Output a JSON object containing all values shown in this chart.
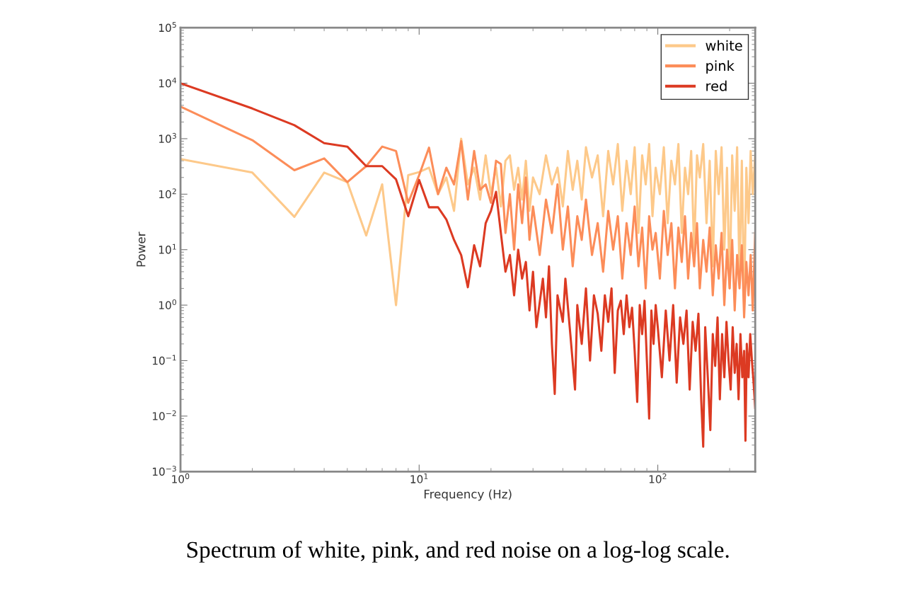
{
  "chart_data": {
    "type": "line",
    "xlabel": "Frequency (Hz)",
    "ylabel": "Power",
    "log": "xy",
    "grid": false,
    "legend": "top right",
    "marker": "none",
    "line_style": "solid",
    "xlim": [
      1,
      256
    ],
    "ylim": [
      0.001,
      100000
    ],
    "xticks": [
      {
        "value": 1,
        "label": "10$^{0}$"
      },
      {
        "value": 10,
        "label": "10$^{1}$"
      },
      {
        "value": 100,
        "label": "10$^{2}$"
      }
    ],
    "yticks": [
      {
        "value": 0.001,
        "label": "10$^{−3}$"
      },
      {
        "value": 0.01,
        "label": "10$^{−2}$"
      },
      {
        "value": 0.1,
        "label": "10$^{−1}$"
      },
      {
        "value": 1,
        "label": "10$^{0}$"
      },
      {
        "value": 10,
        "label": "10$^{1}$"
      },
      {
        "value": 100,
        "label": "10$^{2}$"
      },
      {
        "value": 1000,
        "label": "10$^{3}$"
      },
      {
        "value": 10000,
        "label": "10$^{4}$"
      },
      {
        "value": 100000,
        "label": "10$^{5}$"
      }
    ],
    "annotations": [
      "Spectrum of white, pink, and red noise on a log-log scale."
    ],
    "series": [
      {
        "name": "white",
        "color": "#fdc98a",
        "x": [
          1,
          2,
          3,
          4,
          5,
          6,
          7,
          8,
          9,
          10,
          11,
          12,
          13,
          14,
          15,
          16,
          17,
          18,
          19,
          20,
          21,
          22,
          23,
          24,
          25,
          26,
          27,
          28,
          29,
          30,
          32,
          34,
          36,
          38,
          40,
          42,
          44,
          46,
          48,
          50,
          53,
          56,
          59,
          62,
          65,
          68,
          71,
          74,
          77,
          80,
          83,
          86,
          89,
          92,
          95,
          98,
          102,
          106,
          110,
          114,
          118,
          122,
          126,
          130,
          134,
          138,
          142,
          146,
          150,
          155,
          160,
          165,
          170,
          175,
          180,
          185,
          190,
          195,
          200,
          205,
          210,
          215,
          220,
          225,
          230,
          235,
          240,
          245,
          250,
          256
        ],
        "values": [
          430,
          245,
          39,
          245,
          165,
          18,
          150,
          1,
          220,
          250,
          300,
          100,
          200,
          50,
          1000,
          150,
          300,
          80,
          500,
          100,
          300,
          60,
          400,
          500,
          120,
          300,
          80,
          400,
          50,
          200,
          100,
          500,
          150,
          300,
          60,
          600,
          120,
          400,
          80,
          700,
          200,
          500,
          40,
          600,
          150,
          800,
          50,
          400,
          100,
          700,
          20,
          500,
          150,
          800,
          40,
          300,
          100,
          700,
          30,
          400,
          150,
          800,
          20,
          300,
          100,
          600,
          10,
          500,
          200,
          800,
          30,
          400,
          5,
          600,
          100,
          700,
          10,
          300,
          2,
          500,
          50,
          700,
          3,
          400,
          1,
          300,
          30,
          600,
          100,
          500
        ]
      },
      {
        "name": "pink",
        "color": "#fc8d59",
        "x": [
          1,
          2,
          3,
          4,
          5,
          6,
          7,
          8,
          9,
          10,
          11,
          12,
          13,
          14,
          15,
          16,
          17,
          18,
          19,
          20,
          21,
          22,
          23,
          24,
          25,
          26,
          27,
          28,
          29,
          30,
          32,
          34,
          36,
          38,
          40,
          42,
          44,
          46,
          48,
          50,
          53,
          56,
          59,
          62,
          65,
          68,
          71,
          74,
          77,
          80,
          83,
          86,
          89,
          92,
          95,
          98,
          102,
          106,
          110,
          114,
          118,
          122,
          126,
          130,
          134,
          138,
          142,
          146,
          150,
          155,
          160,
          165,
          170,
          175,
          180,
          185,
          190,
          195,
          200,
          205,
          210,
          215,
          220,
          225,
          230,
          235,
          240,
          245,
          250,
          256
        ],
        "values": [
          3800,
          940,
          270,
          440,
          165,
          320,
          720,
          600,
          70,
          220,
          690,
          100,
          300,
          150,
          900,
          80,
          600,
          120,
          150,
          70,
          400,
          350,
          20,
          100,
          10,
          150,
          30,
          200,
          15,
          60,
          8,
          80,
          20,
          150,
          10,
          60,
          5,
          40,
          15,
          80,
          8,
          30,
          4,
          50,
          10,
          40,
          3,
          30,
          8,
          60,
          5,
          25,
          2,
          40,
          10,
          20,
          3,
          50,
          8,
          30,
          2,
          25,
          6,
          40,
          3,
          20,
          5,
          30,
          2,
          15,
          4,
          25,
          1.5,
          12,
          3,
          20,
          1,
          10,
          2,
          15,
          0.8,
          8,
          2,
          12,
          0.6,
          6,
          1.5,
          8,
          0.8,
          20
        ]
      },
      {
        "name": "red",
        "color": "#dc3a22",
        "x": [
          1,
          2,
          3,
          4,
          5,
          6,
          7,
          8,
          9,
          10,
          11,
          12,
          13,
          14,
          15,
          16,
          17,
          18,
          19,
          20,
          21,
          22,
          23,
          24,
          25,
          26,
          27,
          28,
          29,
          30,
          31,
          33,
          34,
          35,
          36,
          37,
          38,
          40,
          41,
          43,
          45,
          46,
          48,
          50,
          52,
          54,
          56,
          58,
          60,
          62,
          64,
          66,
          68,
          70,
          72,
          74,
          76,
          78,
          80,
          82,
          84,
          86,
          88,
          90,
          92,
          94,
          96,
          98,
          100,
          104,
          108,
          112,
          116,
          120,
          124,
          128,
          132,
          136,
          140,
          144,
          148,
          152,
          155,
          158,
          162,
          166,
          170,
          174,
          178,
          182,
          186,
          190,
          194,
          198,
          202,
          206,
          210,
          214,
          218,
          222,
          226,
          230,
          233,
          236,
          240,
          244,
          248,
          252,
          256
        ],
        "values": [
          10000,
          3500,
          1750,
          830,
          720,
          320,
          320,
          185,
          40,
          180,
          58,
          58,
          35,
          15,
          8,
          2.1,
          12,
          5,
          30,
          50,
          110,
          20,
          4,
          8,
          1.5,
          10,
          3,
          6,
          0.8,
          4,
          0.4,
          3,
          0.6,
          5,
          0.2,
          0.025,
          1.5,
          0.5,
          3,
          0.3,
          0.03,
          1,
          0.2,
          2,
          0.1,
          1.5,
          0.7,
          0.15,
          1.5,
          0.5,
          2,
          0.06,
          0.8,
          1.2,
          0.3,
          1.5,
          0.4,
          0.9,
          0.15,
          0.018,
          1,
          0.3,
          1.2,
          0.1,
          0.009,
          0.8,
          0.2,
          1,
          0.4,
          0.05,
          0.8,
          0.1,
          1,
          0.04,
          0.6,
          0.2,
          0.8,
          0.03,
          0.5,
          0.15,
          0.7,
          0.02,
          0.0028,
          0.4,
          0.05,
          0.0056,
          0.3,
          0.08,
          0.6,
          0.02,
          0.3,
          0.05,
          0.5,
          0.1,
          0.03,
          0.4,
          0.06,
          0.2,
          0.02,
          0.3,
          0.05,
          0.15,
          0.0036,
          0.2,
          0.05,
          0.3,
          0.1,
          0.04,
          0.014
        ]
      }
    ]
  }
}
